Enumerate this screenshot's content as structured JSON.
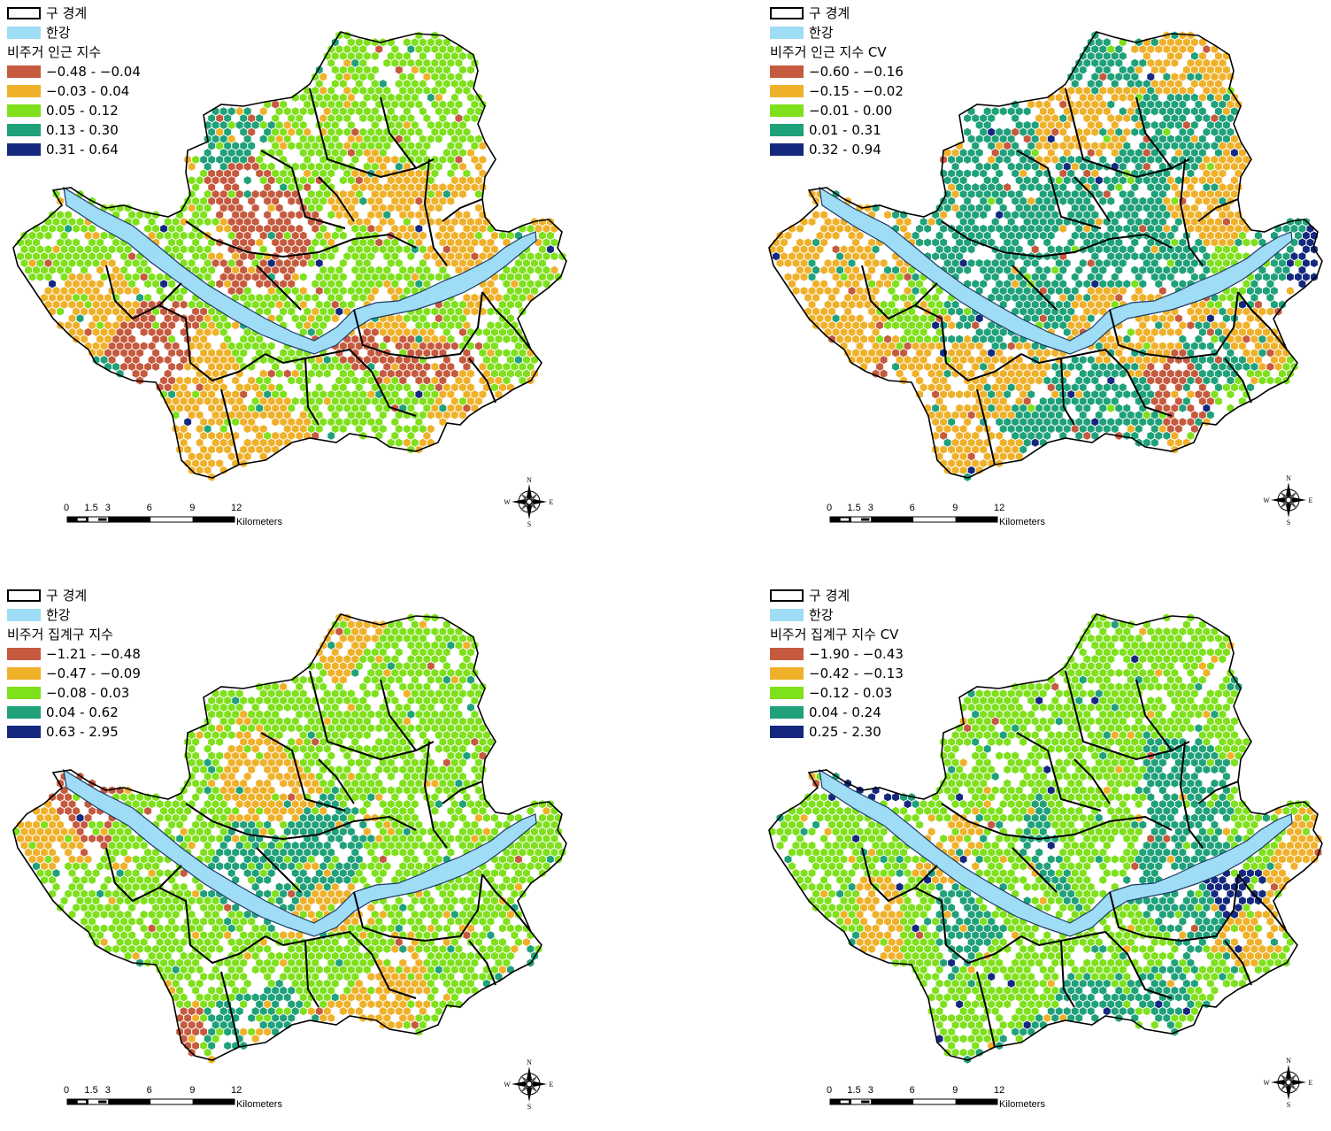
{
  "legend_common": {
    "boundary_label": "구 경계",
    "river_label": "한강",
    "boundary_color": "#000000",
    "river_color": "#9fdcf6"
  },
  "palette": [
    "#c65a3e",
    "#f0b12a",
    "#7fe01c",
    "#1fa17a",
    "#13287e"
  ],
  "panels": [
    {
      "title": "비주거 인근 지수",
      "classes": [
        "−0.48 - −0.04",
        "−0.03 - 0.04",
        "0.05 - 0.12",
        "0.13 - 0.30",
        "0.31 - 0.64"
      ],
      "weights": [
        0.14,
        0.4,
        0.34,
        0.09,
        0.03
      ]
    },
    {
      "title": "비주거 인근 지수 CV",
      "classes": [
        "−0.60 - −0.16",
        "−0.15 - −0.02",
        "−0.01 - 0.00",
        "0.01 - 0.31",
        "0.32 - 0.94"
      ],
      "weights": [
        0.12,
        0.3,
        0.1,
        0.43,
        0.05
      ]
    },
    {
      "title": "비주거 집계구 지수",
      "classes": [
        "−1.21 - −0.48",
        "−0.47 - −0.09",
        "−0.08 - 0.03",
        "0.04 - 0.62",
        "0.63 - 2.95"
      ],
      "weights": [
        0.04,
        0.22,
        0.58,
        0.15,
        0.01
      ]
    },
    {
      "title": "비주거 집계구 지수 CV",
      "classes": [
        "−1.90 - −0.43",
        "−0.42 - −0.13",
        "−0.12 - 0.03",
        "0.04 - 0.24",
        "0.25 - 2.30"
      ],
      "weights": [
        0.05,
        0.15,
        0.46,
        0.27,
        0.07
      ]
    }
  ],
  "scalebar": {
    "ticks": [
      "0",
      "1.5",
      "3",
      "6",
      "9",
      "12"
    ],
    "unit": "Kilometers"
  },
  "compass": {
    "n": "N",
    "s": "S",
    "e": "E",
    "w": "W"
  }
}
